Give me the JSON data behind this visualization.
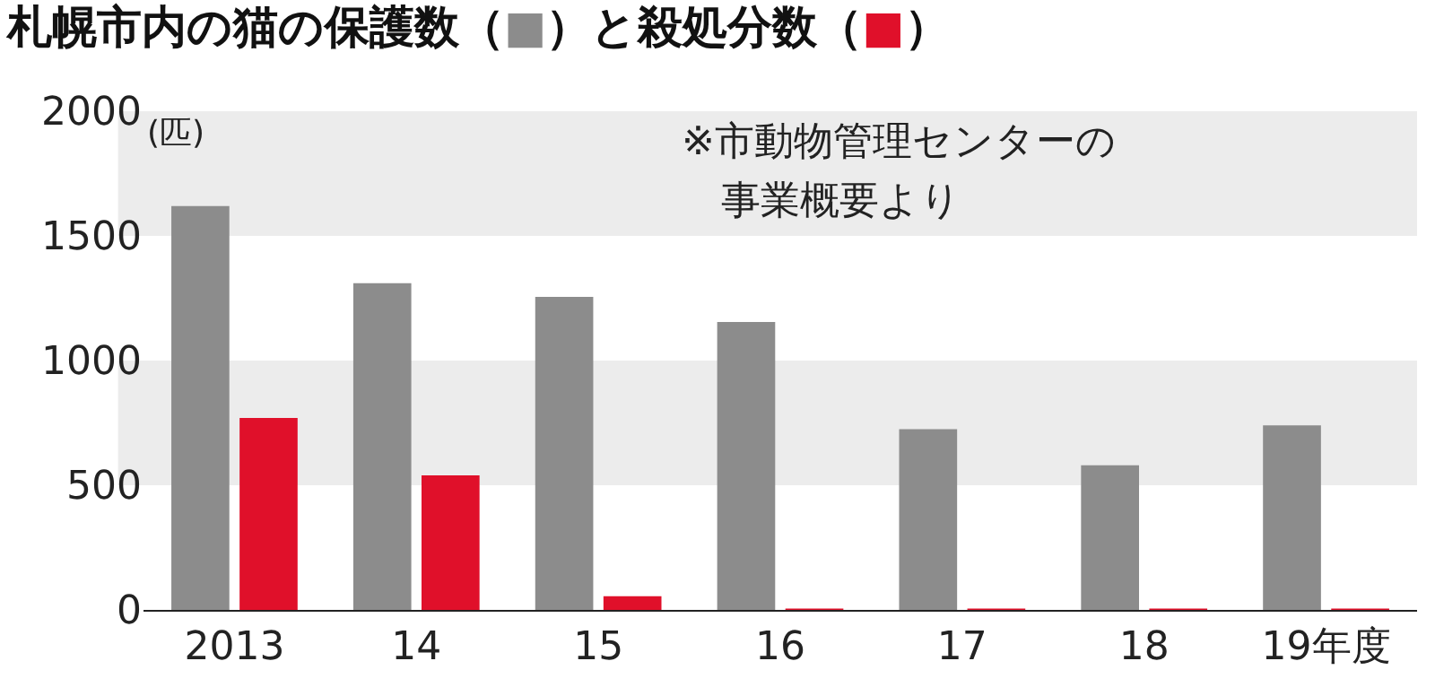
{
  "chart_data": {
    "type": "bar",
    "title": "札幌市内の猫の保護数（■）と殺処分数（■）",
    "ylabel": "(匹)",
    "annotations": [
      "※市動物管理センターの",
      "事業概要より"
    ],
    "categories": [
      "2013",
      "14",
      "15",
      "16",
      "17",
      "18",
      "19年度"
    ],
    "series": [
      {
        "color": "#8c8c8c",
        "values": [
          1620,
          1310,
          1255,
          1155,
          725,
          580,
          740
        ]
      },
      {
        "color": "#e0102a",
        "values": [
          770,
          540,
          55,
          5,
          5,
          5,
          5
        ]
      }
    ],
    "ylim": [
      0,
      2000
    ],
    "yticks": [
      0,
      500,
      1000,
      1500,
      2000
    ],
    "bands": [
      {
        "axis": "y",
        "from": 500,
        "to": 1000,
        "color": "#ececec"
      },
      {
        "axis": "y",
        "from": 1500,
        "to": 2000,
        "color": "#ececec"
      }
    ],
    "grid": false
  }
}
